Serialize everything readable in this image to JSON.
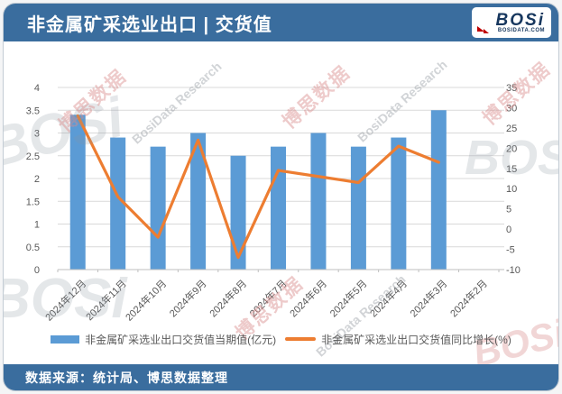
{
  "header": {
    "title": "非金属矿采选业出口 | 交货值",
    "logo": {
      "text": "BOSi",
      "site": "BOSIDATA.COM"
    }
  },
  "footer": {
    "source": "数据来源：统计局、博思数据整理"
  },
  "watermark": {
    "cn": "博思数据",
    "en": "BosiData Research",
    "logo": "BOSi"
  },
  "colors": {
    "header_bar": "#3a6d9e",
    "bar_series": "#5b9bd5",
    "line_series": "#ed7d31",
    "axis_text": "#595959",
    "gridline": "#d9d9d9",
    "logo_navy": "#17375e",
    "logo_red": "#c00000"
  },
  "chart_data": {
    "type": "bar",
    "title": "非金属矿采选业出口 | 交货值",
    "categories": [
      "2024年12月",
      "2024年11月",
      "2024年10月",
      "2024年9月",
      "2024年8月",
      "2024年7月",
      "2024年6月",
      "2024年5月",
      "2024年4月",
      "2024年3月",
      "2024年2月"
    ],
    "series": [
      {
        "name": "非金属矿采选业出口交货值当期值(亿元)",
        "type": "bar",
        "axis": "left",
        "color": "#5b9bd5",
        "values": [
          3.4,
          2.9,
          2.7,
          3.0,
          2.5,
          2.7,
          3.0,
          2.7,
          2.9,
          3.5,
          null
        ]
      },
      {
        "name": "非金属矿采选业出口交货值同比增长(%)",
        "type": "line",
        "axis": "right",
        "color": "#ed7d31",
        "values": [
          28,
          8,
          -2,
          22,
          -7,
          14.5,
          13,
          11.5,
          20.5,
          16.5,
          null
        ]
      }
    ],
    "left_axis": {
      "min": 0,
      "max": 4,
      "step": 0.5
    },
    "right_axis": {
      "min": -10,
      "max": 35,
      "step": 5
    },
    "grid": true,
    "legend_position": "bottom",
    "xlabel": "",
    "ylabel_left": "亿元",
    "ylabel_right": "%"
  }
}
